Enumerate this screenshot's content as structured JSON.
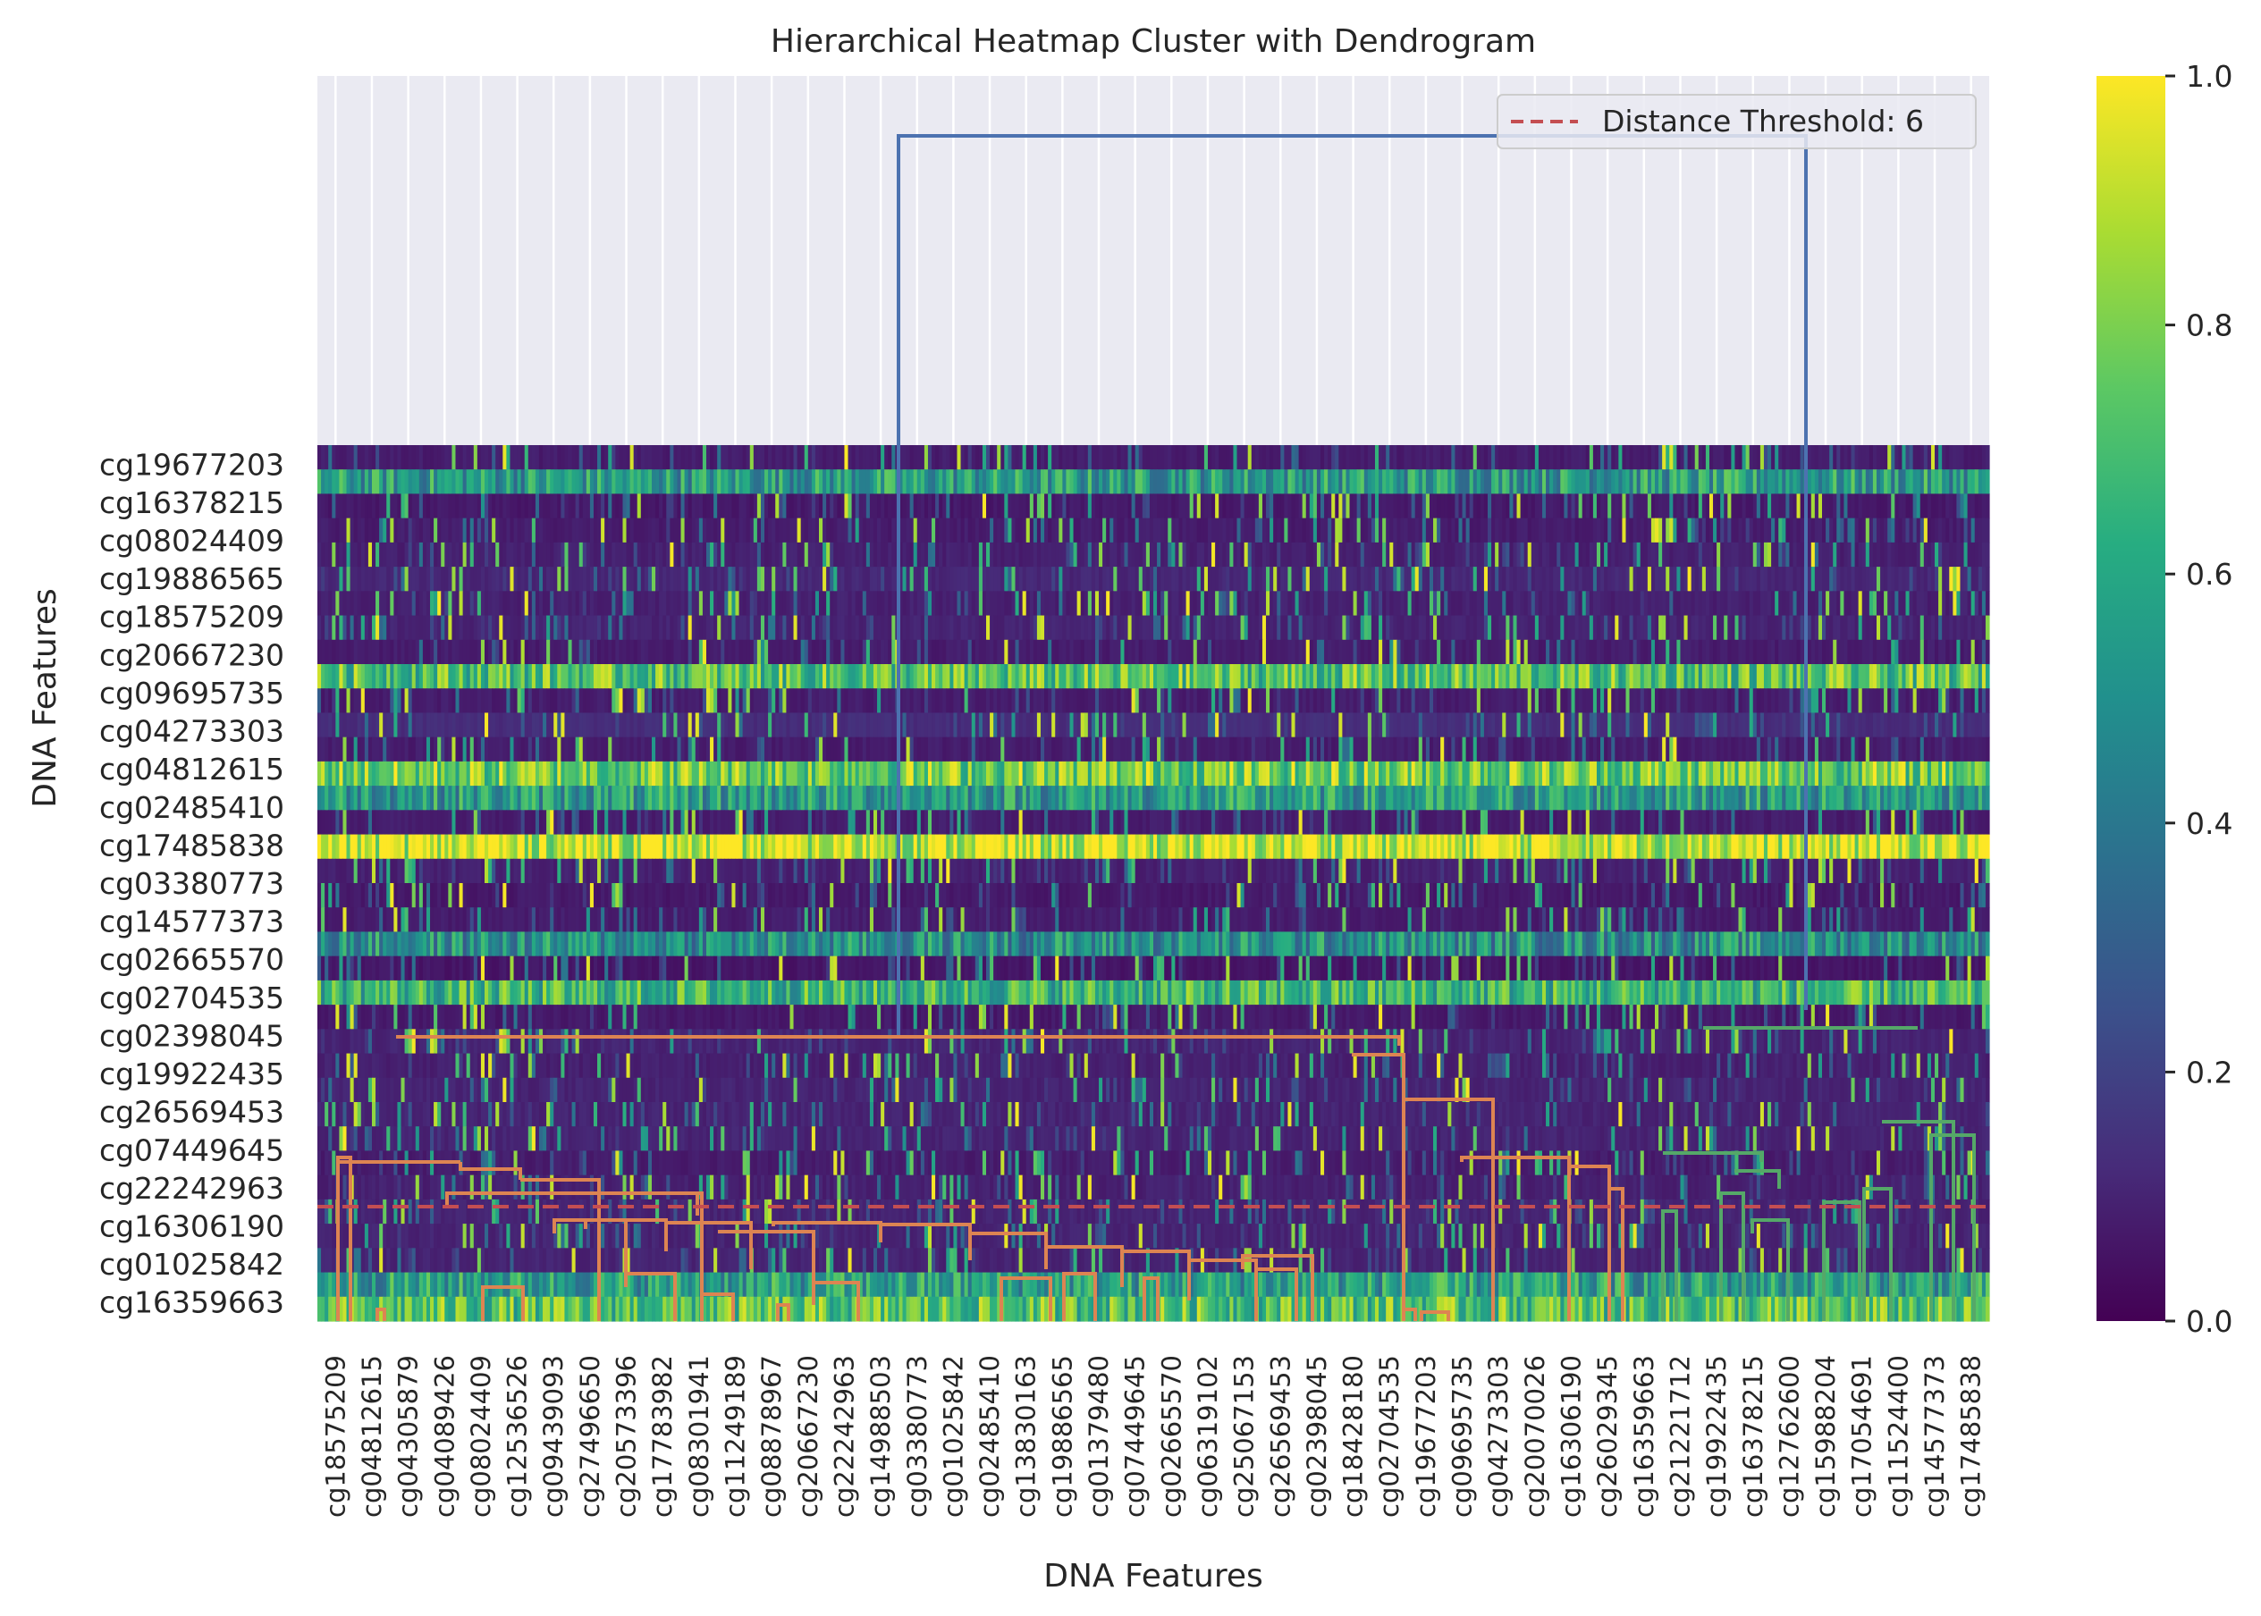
{
  "chart_data": {
    "type": "heatmap",
    "title": "Hierarchical Heatmap Cluster with Dendrogram",
    "xlabel": "DNA Features",
    "ylabel": "DNA Features",
    "colormap": "viridis",
    "colorbar": {
      "min": 0.0,
      "max": 1.0,
      "ticks": [
        "0.0",
        "0.2",
        "0.4",
        "0.6",
        "0.8",
        "1.0"
      ]
    },
    "y_tick_labels": [
      "cg19677203",
      "cg16378215",
      "cg08024409",
      "cg19886565",
      "cg18575209",
      "cg20667230",
      "cg09695735",
      "cg04273303",
      "cg04812615",
      "cg02485410",
      "cg17485838",
      "cg03380773",
      "cg14577373",
      "cg02665570",
      "cg02704535",
      "cg02398045",
      "cg19922435",
      "cg26569453",
      "cg07449645",
      "cg22242963",
      "cg16306190",
      "cg01025842",
      "cg16359663"
    ],
    "x_tick_labels": [
      "cg18575209",
      "cg04812615",
      "cg04305879",
      "cg04089426",
      "cg08024409",
      "cg12536526",
      "cg09439093",
      "cg27496650",
      "cg20573396",
      "cg17783982",
      "cg08301941",
      "cg11249189",
      "cg08878967",
      "cg20667230",
      "cg22242963",
      "cg14988503",
      "cg03380773",
      "cg01025842",
      "cg02485410",
      "cg13830163",
      "cg19886565",
      "cg01379480",
      "cg07449645",
      "cg02665570",
      "cg06319102",
      "cg25067153",
      "cg26569453",
      "cg02398045",
      "cg18428180",
      "cg02704535",
      "cg19677203",
      "cg09695735",
      "cg04273303",
      "cg20070026",
      "cg16306190",
      "cg26029345",
      "cg16359663",
      "cg21221712",
      "cg19922435",
      "cg16378215",
      "cg12762600",
      "cg15988204",
      "cg17054691",
      "cg11524400",
      "cg14577373",
      "cg17485838"
    ],
    "row_base_levels": [
      0.06,
      0.55,
      0.05,
      0.06,
      0.07,
      0.09,
      0.07,
      0.08,
      0.06,
      0.72,
      0.06,
      0.11,
      0.06,
      0.78,
      0.55,
      0.06,
      0.93,
      0.07,
      0.05,
      0.06,
      0.5,
      0.04,
      0.66,
      0.05,
      0.08,
      0.07,
      0.08,
      0.08,
      0.08,
      0.06,
      0.07,
      0.08,
      0.08,
      0.08,
      0.56,
      0.72
    ],
    "dendrogram": {
      "colors": {
        "root": "#4c72b0",
        "cluster1": "#dd8452",
        "cluster2": "#55a868"
      },
      "distance_threshold": {
        "value": 6,
        "color": "#c44e52"
      },
      "legend_label": "Distance Threshold: 6"
    }
  }
}
